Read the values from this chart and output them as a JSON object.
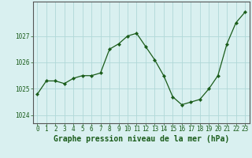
{
  "x": [
    0,
    1,
    2,
    3,
    4,
    5,
    6,
    7,
    8,
    9,
    10,
    11,
    12,
    13,
    14,
    15,
    16,
    17,
    18,
    19,
    20,
    21,
    22,
    23
  ],
  "y": [
    1024.8,
    1025.3,
    1025.3,
    1025.2,
    1025.4,
    1025.5,
    1025.5,
    1025.6,
    1026.5,
    1026.7,
    1027.0,
    1027.1,
    1026.6,
    1026.1,
    1025.5,
    1024.7,
    1024.4,
    1024.5,
    1024.6,
    1025.0,
    1025.5,
    1026.7,
    1027.5,
    1027.9
  ],
  "line_color": "#1a5c1a",
  "marker": "D",
  "marker_size": 2.2,
  "bg_color": "#d9f0f0",
  "grid_color": "#b0d8d8",
  "xlabel": "Graphe pression niveau de la mer (hPa)",
  "xlabel_color": "#1a5c1a",
  "tick_color": "#1a5c1a",
  "axis_color": "#555555",
  "yticks": [
    1024,
    1025,
    1026,
    1027
  ],
  "xticks": [
    0,
    1,
    2,
    3,
    4,
    5,
    6,
    7,
    8,
    9,
    10,
    11,
    12,
    13,
    14,
    15,
    16,
    17,
    18,
    19,
    20,
    21,
    22,
    23
  ],
  "ylim": [
    1023.7,
    1028.3
  ],
  "xlim": [
    -0.5,
    23.5
  ],
  "xlabel_fontsize": 7.0,
  "tick_fontsize": 5.5,
  "linewidth": 0.9
}
